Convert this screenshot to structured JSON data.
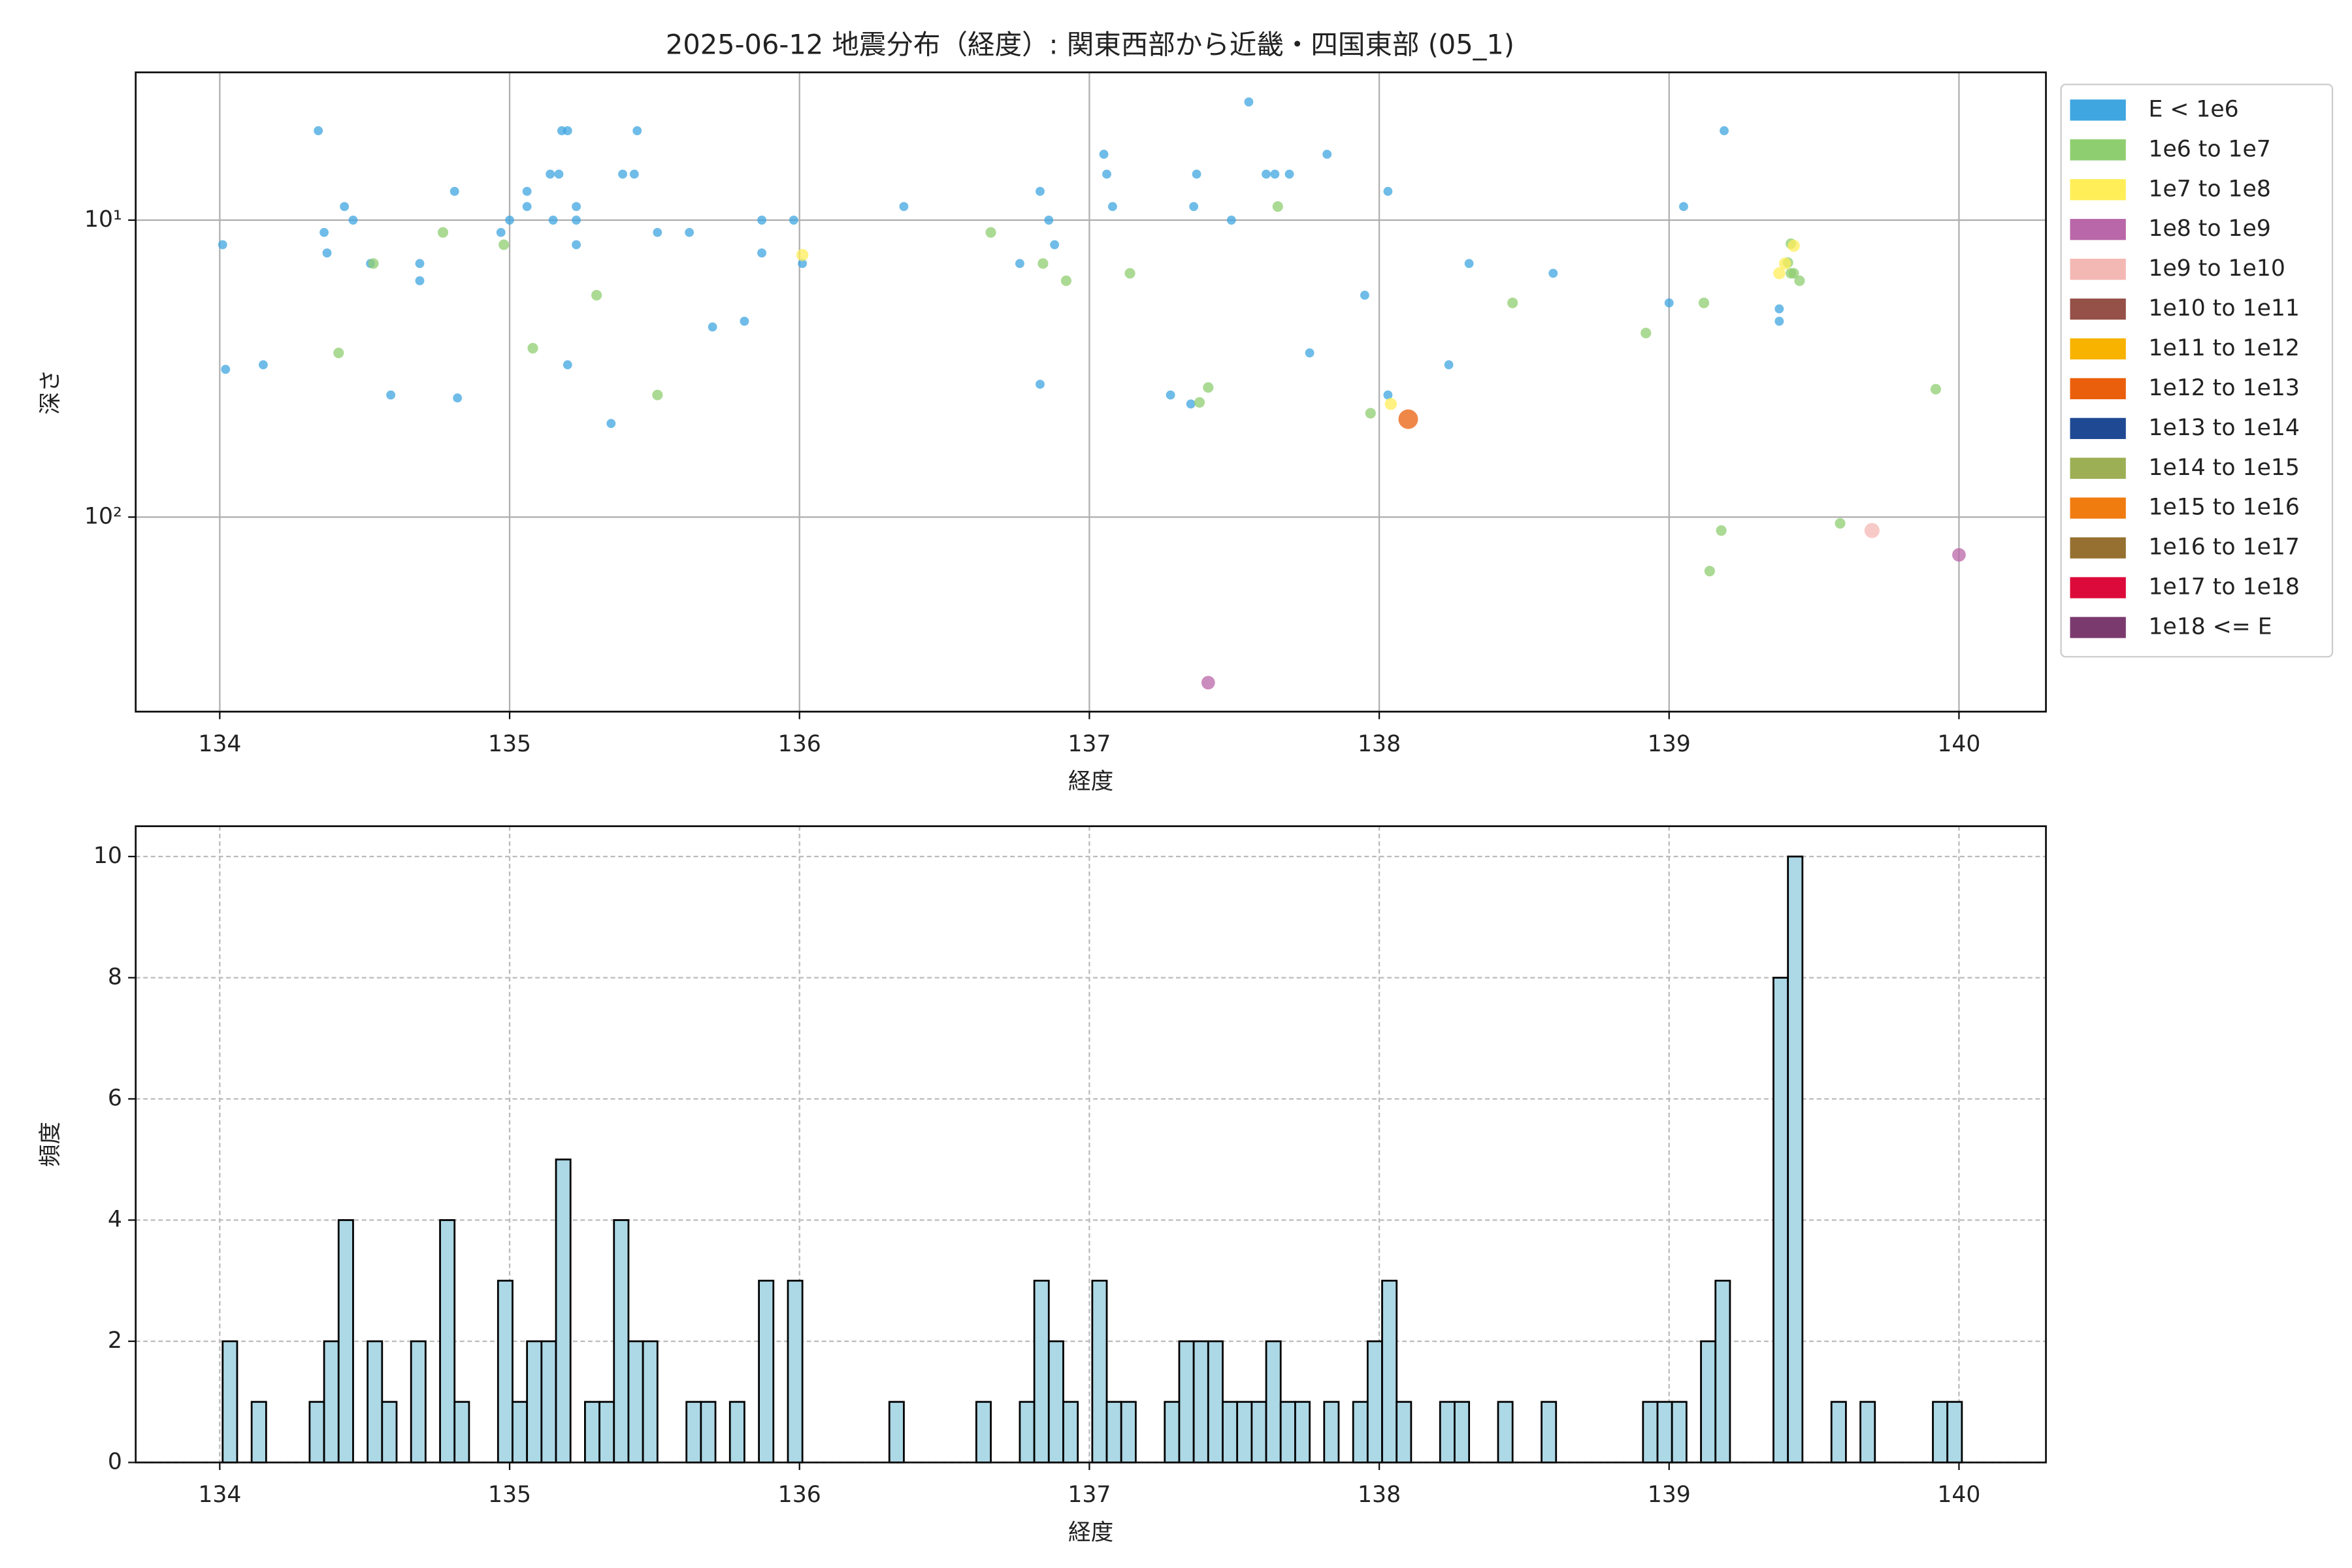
{
  "chart_data": [
    {
      "type": "scatter",
      "title": "2025-06-12 地震分布（経度）: 関東西部から近畿・四国東部 (05_1)",
      "x_label": "経度",
      "y_label": "深さ",
      "xlim": [
        133.71,
        140.3
      ],
      "xticks": [
        134,
        135,
        136,
        137,
        138,
        139,
        140
      ],
      "ylim": [
        452,
        3.18
      ],
      "y_scale": "log",
      "yticks": [
        {
          "value": 10,
          "label": "10¹"
        },
        {
          "value": 100,
          "label": "10²"
        }
      ],
      "grid": true,
      "grid_linestyle": "solid",
      "legend": "outside upper right",
      "series": [
        {
          "name": "E < 1e6",
          "color": "#3fa6e0",
          "x": [
            134.01,
            134.02,
            134.15,
            134.34,
            134.36,
            134.37,
            134.43,
            134.46,
            134.52,
            134.59,
            134.69,
            134.69,
            134.81,
            134.82,
            134.97,
            135.0,
            135.06,
            135.06,
            135.14,
            135.17,
            135.15,
            135.18,
            135.2,
            135.2,
            135.23,
            135.23,
            135.23,
            135.35,
            135.39,
            135.43,
            135.44,
            135.51,
            135.62,
            135.7,
            135.81,
            135.87,
            135.87,
            135.98,
            136.01,
            136.36,
            136.76,
            136.83,
            136.83,
            136.86,
            136.88,
            137.05,
            137.06,
            137.08,
            137.28,
            137.35,
            137.36,
            137.37,
            137.49,
            137.55,
            137.61,
            137.64,
            137.69,
            137.76,
            137.82,
            137.95,
            138.03,
            138.03,
            138.24,
            138.31,
            138.6,
            139.0,
            139.05,
            139.19,
            139.38,
            139.38
          ],
          "values": [
            12.1,
            31.8,
            30.7,
            5.0,
            11,
            12.9,
            9.0,
            10,
            14.0,
            38.8,
            14.0,
            16.0,
            8.0,
            39.7,
            11,
            10,
            9.0,
            8.0,
            7.0,
            7.0,
            10,
            5.0,
            5.0,
            30.7,
            12.1,
            9.0,
            10,
            48.4,
            7.0,
            7.0,
            5.0,
            11,
            11,
            22.9,
            21.9,
            12.9,
            10,
            10,
            14.0,
            9.0,
            14,
            35.7,
            8.0,
            10,
            12.1,
            6.0,
            7.0,
            9.0,
            38.8,
            41.6,
            9.0,
            7.0,
            10,
            4.0,
            7.0,
            7.0,
            7.0,
            28,
            6.0,
            17.9,
            38.8,
            8.0,
            30.7,
            14.0,
            15.1,
            19.0,
            9.0,
            5.0,
            19.9,
            21.9
          ]
        },
        {
          "name": "1e6 to 1e7",
          "color": "#8fce70",
          "x": [
            134.53,
            134.41,
            134.77,
            134.98,
            135.08,
            135.3,
            135.51,
            136.66,
            136.84,
            136.92,
            137.14,
            137.38,
            137.41,
            137.65,
            137.97,
            138.46,
            138.92,
            139.12,
            139.14,
            139.18,
            139.42,
            139.42,
            139.41,
            139.45,
            139.59,
            139.92,
            139.43
          ],
          "values": [
            14,
            28,
            11,
            12.1,
            27,
            17.9,
            38.8,
            11,
            14,
            16,
            15.1,
            41.1,
            36.6,
            9.0,
            44.7,
            19.0,
            24.0,
            19.0,
            152,
            111,
            15.1,
            12.0,
            13.9,
            16.0,
            105,
            37.1,
            15.1
          ]
        },
        {
          "name": "1e7 to 1e8",
          "color": "#ffee58",
          "x": [
            136.01,
            138.04,
            139.38,
            139.4,
            139.43
          ],
          "values": [
            13.1,
            41.6,
            15.1,
            14.0,
            12.2
          ]
        },
        {
          "name": "1e8 to 1e9",
          "color": "#b967a8",
          "x": [
            137.41,
            140.0
          ],
          "values": [
            361,
            134
          ]
        },
        {
          "name": "1e9 to 1e10",
          "color": "#f4b8b4",
          "x": [
            139.7
          ],
          "values": [
            111
          ]
        },
        {
          "name": "1e10 to 1e11",
          "color": "#955048",
          "x": [],
          "values": []
        },
        {
          "name": "1e11 to 1e12",
          "color": "#f7b300",
          "x": [],
          "values": []
        },
        {
          "name": "1e12 to 1e13",
          "color": "#ea5f0c",
          "x": [
            138.1
          ],
          "values": [
            46.8
          ]
        },
        {
          "name": "1e13 to 1e14",
          "color": "#1f4a93",
          "x": [],
          "values": []
        },
        {
          "name": "1e14 to 1e15",
          "color": "#9caf55",
          "x": [],
          "values": []
        },
        {
          "name": "1e15 to 1e16",
          "color": "#f07c10",
          "x": [],
          "values": []
        },
        {
          "name": "1e16 to 1e17",
          "color": "#957030",
          "x": [],
          "values": []
        },
        {
          "name": "1e17 to 1e18",
          "color": "#dc0a3a",
          "x": [],
          "values": []
        },
        {
          "name": "1e18 <= E",
          "color": "#7b3a6e",
          "x": [],
          "values": []
        }
      ]
    },
    {
      "type": "histogram",
      "x_label": "経度",
      "y_label": "頻度",
      "color": "#add8e6",
      "xlim": [
        133.71,
        140.3
      ],
      "xticks": [
        134,
        135,
        136,
        137,
        138,
        139,
        140
      ],
      "ylim": [
        0,
        10.5
      ],
      "yticks": [
        0,
        2,
        4,
        6,
        8,
        10
      ],
      "grid": true,
      "grid_linestyle": "dashed",
      "bins": [
        134.01,
        134.06,
        134.11,
        134.16,
        134.21,
        134.26,
        134.31,
        134.36,
        134.41,
        134.46,
        134.51,
        134.56,
        134.61,
        134.66,
        134.71,
        134.76,
        134.81,
        134.86,
        134.91,
        134.96,
        135.01,
        135.06,
        135.11,
        135.16,
        135.21,
        135.26,
        135.31,
        135.36,
        135.41,
        135.46,
        135.51,
        135.56,
        135.61,
        135.66,
        135.71,
        135.76,
        135.81,
        135.86,
        135.91,
        135.96,
        136.01,
        136.06,
        136.11,
        136.16,
        136.21,
        136.26,
        136.31,
        136.36,
        136.41,
        136.46,
        136.51,
        136.56,
        136.61,
        136.66,
        136.71,
        136.76,
        136.81,
        136.86,
        136.91,
        136.96,
        137.01,
        137.06,
        137.11,
        137.16,
        137.21,
        137.26,
        137.31,
        137.36,
        137.41,
        137.46,
        137.51,
        137.56,
        137.61,
        137.66,
        137.71,
        137.76,
        137.81,
        137.86,
        137.91,
        137.96,
        138.01,
        138.06,
        138.11,
        138.16,
        138.21,
        138.26,
        138.31,
        138.36,
        138.41,
        138.46,
        138.51,
        138.56,
        138.61,
        138.66,
        138.71,
        138.76,
        138.81,
        138.86,
        138.91,
        138.96,
        139.01,
        139.06,
        139.11,
        139.16,
        139.21,
        139.26,
        139.31,
        139.36,
        139.41,
        139.46,
        139.51,
        139.56,
        139.61,
        139.66,
        139.71,
        139.76,
        139.81,
        139.86,
        139.91,
        139.96,
        140.01
      ],
      "values": [
        2,
        0,
        1,
        0,
        0,
        0,
        1,
        2,
        4,
        0,
        2,
        1,
        0,
        2,
        0,
        4,
        1,
        0,
        0,
        3,
        1,
        2,
        2,
        5,
        0,
        1,
        1,
        4,
        2,
        2,
        0,
        0,
        1,
        1,
        0,
        1,
        0,
        3,
        0,
        3,
        0,
        0,
        0,
        0,
        0,
        0,
        1,
        0,
        0,
        0,
        0,
        0,
        1,
        0,
        0,
        1,
        3,
        2,
        1,
        0,
        3,
        1,
        1,
        0,
        0,
        1,
        2,
        2,
        2,
        1,
        1,
        1,
        2,
        1,
        1,
        0,
        1,
        0,
        1,
        2,
        3,
        1,
        0,
        0,
        1,
        1,
        0,
        0,
        1,
        0,
        0,
        1,
        0,
        0,
        0,
        0,
        0,
        0,
        1,
        1,
        1,
        0,
        2,
        3,
        0,
        0,
        0,
        8,
        10,
        0,
        0,
        1,
        0,
        1,
        0,
        0,
        0,
        0,
        1,
        1
      ]
    }
  ]
}
